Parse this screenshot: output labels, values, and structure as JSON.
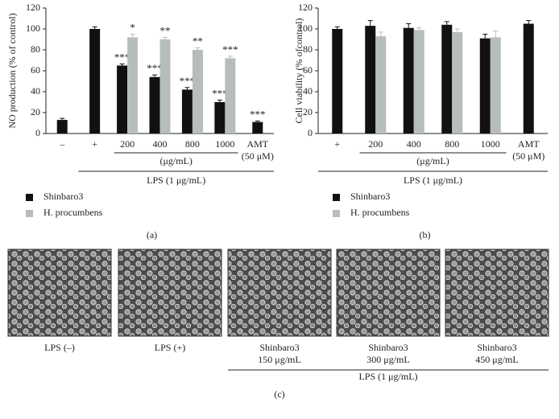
{
  "chart_data": [
    {
      "type": "bar",
      "y_label": "NO production (% of control)",
      "categories": [
        "–",
        "+",
        "200",
        "400",
        "800",
        "1000",
        [
          "AMT",
          "(50 μM)"
        ]
      ],
      "unit_label": "(μg/mL)",
      "group_label": "LPS (1 μg/mL)",
      "series": [
        {
          "name": "Shinbaro3",
          "color": "#111111",
          "values": [
            13,
            100,
            65,
            54,
            42,
            30,
            11
          ],
          "errors": [
            1.5,
            2,
            1.5,
            2,
            2,
            2,
            1
          ],
          "annotations": [
            null,
            null,
            "***",
            "***",
            "***",
            "***",
            "***"
          ]
        },
        {
          "name": "H. procumbens",
          "color": "#b7bdbd",
          "values": [
            null,
            null,
            92,
            90,
            80,
            72,
            null
          ],
          "errors": [
            null,
            null,
            3,
            2,
            2,
            2,
            null
          ],
          "annotations": [
            null,
            null,
            "*",
            "**",
            "**",
            "***",
            null
          ]
        }
      ],
      "ylim": [
        0,
        120
      ],
      "yticks": [
        0,
        20,
        40,
        60,
        80,
        100,
        120
      ],
      "panel_label": "(a)"
    },
    {
      "type": "bar",
      "y_label": "Cell viability (% ofcontrol)",
      "categories": [
        "+",
        "200",
        "400",
        "800",
        "1000",
        [
          "AMT",
          "(50 μM)"
        ]
      ],
      "unit_label": "(μg/mL)",
      "group_label": "LPS (1 μg/mL)",
      "series": [
        {
          "name": "Shinbaro3",
          "color": "#111111",
          "values": [
            100,
            103,
            101,
            104,
            91,
            105
          ],
          "errors": [
            2,
            5,
            4,
            3,
            4,
            3
          ]
        },
        {
          "name": "H. procumbens",
          "color": "#b7bdbd",
          "values": [
            null,
            93,
            99,
            97,
            92,
            null
          ],
          "errors": [
            null,
            4,
            2,
            3,
            6,
            null
          ]
        }
      ],
      "ylim": [
        0,
        120
      ],
      "yticks": [
        0,
        20,
        40,
        60,
        80,
        100,
        120
      ],
      "panel_label": "(b)"
    }
  ],
  "images": [
    {
      "caption": [
        "LPS (–)"
      ]
    },
    {
      "caption": [
        "LPS (+)"
      ]
    },
    {
      "caption": [
        "Shinbaro3",
        "150 μg/mL"
      ]
    },
    {
      "caption": [
        "Shinbaro3",
        "300 μg/mL"
      ]
    },
    {
      "caption": [
        "Shinbaro3",
        "450 μg/mL"
      ]
    }
  ],
  "images_group_label": "LPS (1 μg/mL)",
  "images_panel_label": "(c)"
}
